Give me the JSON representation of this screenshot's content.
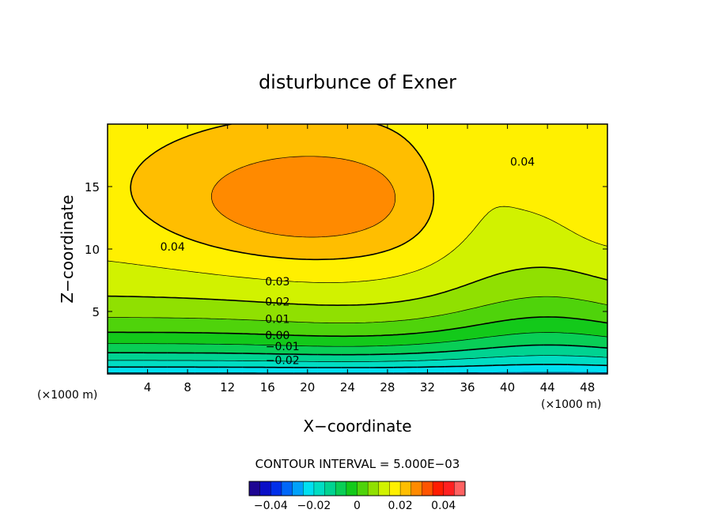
{
  "chart_data": {
    "type": "heatmap",
    "title": "disturbunce of Exner",
    "xlabel": "X−coordinate",
    "ylabel": "Z−coordinate",
    "x_unit": "(×1000 m)",
    "y_unit": "(×1000 m)",
    "xlim": [
      0,
      50
    ],
    "ylim": [
      0,
      20
    ],
    "x_ticks": [
      "4",
      "8",
      "12",
      "16",
      "20",
      "24",
      "28",
      "32",
      "36",
      "40",
      "44",
      "48"
    ],
    "y_ticks": [
      "5",
      "10",
      "15"
    ],
    "contour_interval_text": "CONTOUR INTERVAL = 5.000E−03",
    "contour_interval": 0.005,
    "value_range": [
      -0.05,
      0.05
    ],
    "contour_labels": [
      {
        "text": "0.04",
        "x": 41.5,
        "z": 17.0
      },
      {
        "text": "0.04",
        "x": 6.5,
        "z": 10.2
      },
      {
        "text": "0.03",
        "x": 17.0,
        "z": 7.4
      },
      {
        "text": "0.02",
        "x": 17.0,
        "z": 5.8
      },
      {
        "text": "0.01",
        "x": 17.0,
        "z": 4.4
      },
      {
        "text": "0.00",
        "x": 17.0,
        "z": 3.1
      },
      {
        "text": "−0.01",
        "x": 17.5,
        "z": 2.2
      },
      {
        "text": "−0.02",
        "x": 17.5,
        "z": 1.1
      }
    ],
    "colorbar_ticks": [
      "−0.04",
      "−0.02",
      "0",
      "0.02",
      "0.04"
    ],
    "colorbar_tick_values": [
      -0.04,
      -0.02,
      0,
      0.02,
      0.04
    ]
  }
}
